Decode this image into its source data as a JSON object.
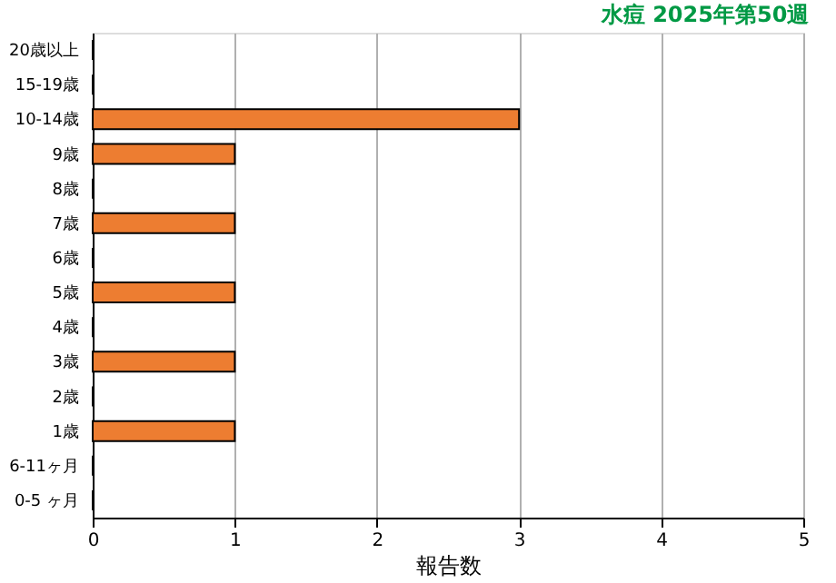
{
  "chart_data": {
    "type": "bar",
    "orientation": "horizontal",
    "title": "水痘 2025年第50週",
    "xlabel": "報告数",
    "categories": [
      "20歳以上",
      "15-19歳",
      "10-14歳",
      "9歳",
      "8歳",
      "7歳",
      "6歳",
      "5歳",
      "4歳",
      "3歳",
      "2歳",
      "1歳",
      "6-11ヶ月",
      "0-5 ヶ月"
    ],
    "values": [
      0,
      0,
      3,
      1,
      0,
      1,
      0,
      1,
      0,
      1,
      0,
      1,
      0,
      0
    ],
    "color": "#ed7d31",
    "xlim": [
      0,
      5
    ],
    "xticks": [
      0,
      1,
      2,
      3,
      4,
      5
    ],
    "grid": "x"
  }
}
